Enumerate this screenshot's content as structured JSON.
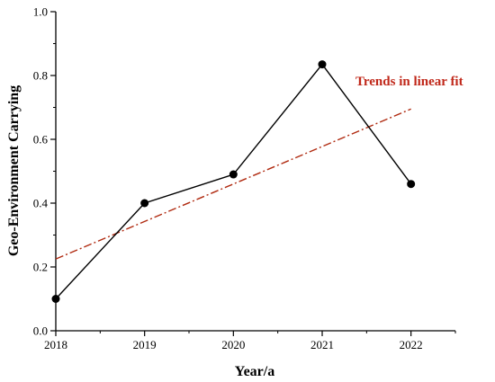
{
  "colors": {
    "series": "#000000",
    "trend": "#b02a10",
    "annotation": "#c0281a"
  },
  "chart_data": {
    "type": "line",
    "x": [
      2018,
      2019,
      2020,
      2021,
      2022
    ],
    "series": [
      {
        "values": [
          0.1,
          0.4,
          0.49,
          0.835,
          0.46
        ]
      }
    ],
    "trend_line": {
      "label": "Trends in linear fit",
      "from": [
        2018,
        0.225
      ],
      "to": [
        2022,
        0.695
      ]
    },
    "xlabel": "Year/a",
    "ylabel": "Geo-Environment Carrying",
    "xticks": [
      "2018",
      "2019",
      "2020",
      "2021",
      "2022"
    ],
    "yticks": [
      "0.0",
      "0.2",
      "0.4",
      "0.6",
      "0.8",
      "1.0"
    ],
    "xlim": [
      2018,
      2022.5
    ],
    "ylim": [
      0,
      1.0
    ],
    "grid": false
  }
}
